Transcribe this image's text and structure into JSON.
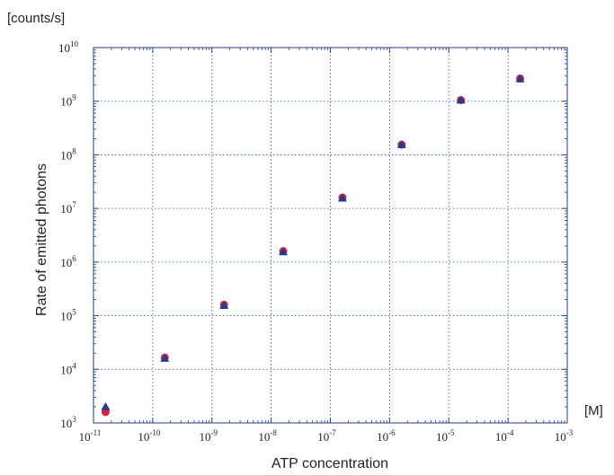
{
  "chart_data": {
    "type": "scatter",
    "x_scale": "log",
    "y_scale": "log",
    "xlim": [
      1e-11,
      0.001
    ],
    "ylim": [
      1000.0,
      10000000000.0
    ],
    "grid": true,
    "xlabel": "ATP concentration",
    "x_unit": "[M]",
    "ylabel": "Rate of emitted photons",
    "y_unit": "[counts/s]",
    "x_ticks": [
      {
        "base": "10",
        "exp": "-11"
      },
      {
        "base": "10",
        "exp": "-10"
      },
      {
        "base": "10",
        "exp": "-9"
      },
      {
        "base": "10",
        "exp": "-8"
      },
      {
        "base": "10",
        "exp": "-7"
      },
      {
        "base": "10",
        "exp": "-6"
      },
      {
        "base": "10",
        "exp": "-5"
      },
      {
        "base": "10",
        "exp": "-4"
      },
      {
        "base": "10",
        "exp": "-3"
      }
    ],
    "y_ticks": [
      {
        "base": "10",
        "exp": "3"
      },
      {
        "base": "10",
        "exp": "4"
      },
      {
        "base": "10",
        "exp": "5"
      },
      {
        "base": "10",
        "exp": "6"
      },
      {
        "base": "10",
        "exp": "7"
      },
      {
        "base": "10",
        "exp": "8"
      },
      {
        "base": "10",
        "exp": "9"
      },
      {
        "base": "10",
        "exp": "10"
      }
    ],
    "series": [
      {
        "marker": "circle",
        "color": "#e0203a",
        "x": [
          1.6e-11,
          1.6e-10,
          1.6e-09,
          1.6e-08,
          1.6e-07,
          1.6e-06,
          1.6e-05,
          0.00016
        ],
        "y": [
          1600.0,
          16500.0,
          160000.0,
          1600000.0,
          16000000.0,
          155000000.0,
          1050000000.0,
          2650000000.0
        ]
      },
      {
        "marker": "triangle",
        "color": "#1f3e8f",
        "x": [
          1.6e-11,
          1.6e-10,
          1.6e-09,
          1.6e-08,
          1.6e-07,
          1.6e-06,
          1.6e-05,
          0.00016
        ],
        "y": [
          2000.0,
          16000.0,
          155000.0,
          1550000.0,
          15500000.0,
          155000000.0,
          1050000000.0,
          2600000000.0
        ]
      }
    ]
  }
}
